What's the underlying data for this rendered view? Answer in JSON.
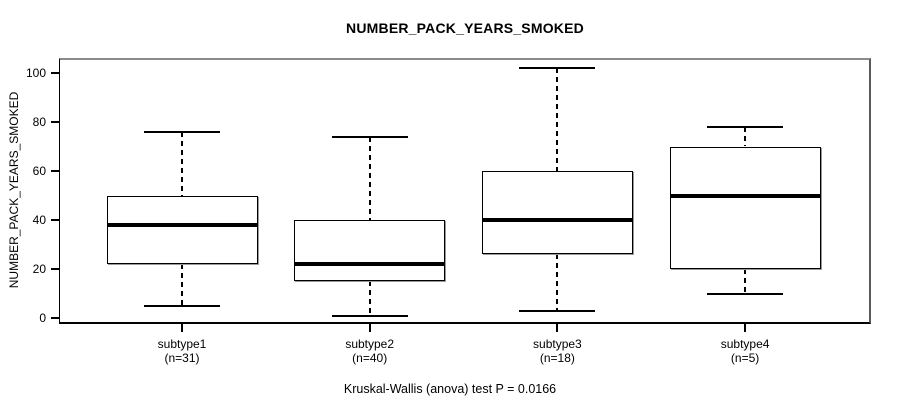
{
  "title": "NUMBER_PACK_YEARS_SMOKED",
  "y_axis_label": "NUMBER_PACK_YEARS_SMOKED",
  "caption": "Kruskal-Wallis (anova) test P = 0.0166",
  "chart_data": {
    "type": "boxplot",
    "title": "NUMBER_PACK_YEARS_SMOKED",
    "xlabel": "",
    "ylabel": "NUMBER_PACK_YEARS_SMOKED",
    "ylim": [
      -2.4,
      106.1
    ],
    "yticks": [
      0,
      20,
      40,
      60,
      80,
      100
    ],
    "grid": false,
    "legend": null,
    "categories": [
      "subtype1",
      "subtype2",
      "subtype3",
      "subtype4"
    ],
    "groups": [
      {
        "label": "subtype1",
        "n": 31,
        "n_label": "(n=31)",
        "whisker_low": 5,
        "q1": 22,
        "median": 38,
        "q3": 50,
        "whisker_high": 76
      },
      {
        "label": "subtype2",
        "n": 40,
        "n_label": "(n=40)",
        "whisker_low": 1,
        "q1": 15,
        "median": 22,
        "q3": 40,
        "whisker_high": 74
      },
      {
        "label": "subtype3",
        "n": 18,
        "n_label": "(n=18)",
        "whisker_low": 3,
        "q1": 26,
        "median": 40,
        "q3": 60,
        "whisker_high": 102
      },
      {
        "label": "subtype4",
        "n": 5,
        "n_label": "(n=5)",
        "whisker_low": 10,
        "q1": 20,
        "median": 50,
        "q3": 70,
        "whisker_high": 78
      }
    ],
    "annotation": "Kruskal-Wallis (anova) test P = 0.0166"
  },
  "colors": {
    "background": "#ffffff",
    "box_border": "#000000",
    "median": "#000000",
    "whisker": "#000000",
    "frame_shadow": "#888888",
    "text": "#000000"
  }
}
